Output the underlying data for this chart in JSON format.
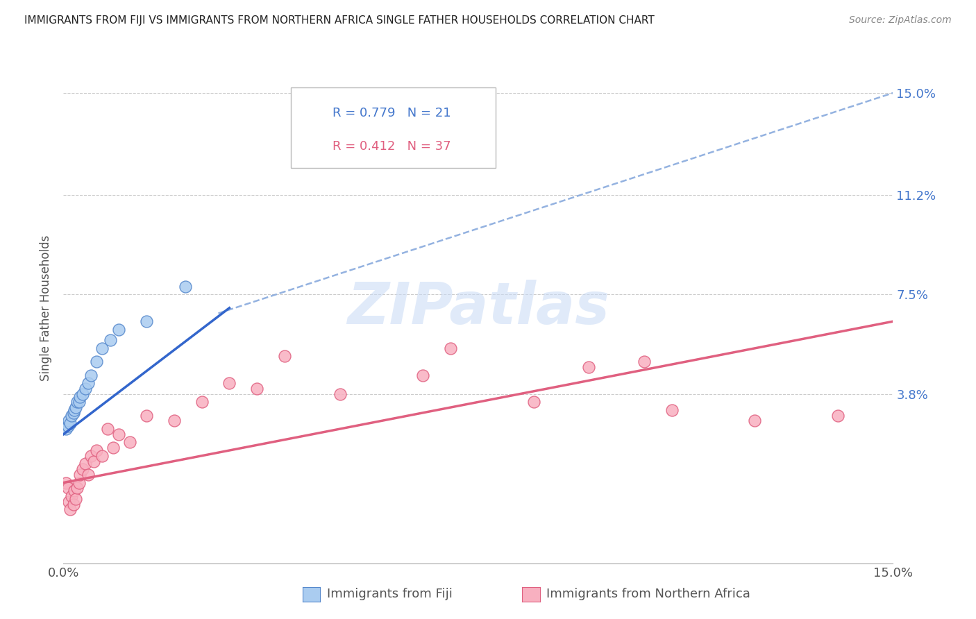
{
  "title": "IMMIGRANTS FROM FIJI VS IMMIGRANTS FROM NORTHERN AFRICA SINGLE FATHER HOUSEHOLDS CORRELATION CHART",
  "source": "Source: ZipAtlas.com",
  "ylabel": "Single Father Households",
  "ytick_labels": [
    "3.8%",
    "7.5%",
    "11.2%",
    "15.0%"
  ],
  "ytick_values": [
    3.8,
    7.5,
    11.2,
    15.0
  ],
  "xlim": [
    0.0,
    15.0
  ],
  "ylim": [
    -2.5,
    16.5
  ],
  "fiji_color": "#aaccf0",
  "fiji_edge_color": "#5588cc",
  "northa_color": "#f8b0c0",
  "northa_edge_color": "#e06080",
  "fiji_line_color": "#3366cc",
  "northa_line_color": "#e06080",
  "dash_color": "#88aadd",
  "fiji_R": 0.779,
  "fiji_N": 21,
  "northa_R": 0.412,
  "northa_N": 37,
  "legend_fiji_label": "Immigrants from Fiji",
  "legend_northa_label": "Immigrants from Northern Africa",
  "watermark": "ZIPatlas",
  "fiji_x": [
    0.05,
    0.08,
    0.1,
    0.12,
    0.15,
    0.18,
    0.2,
    0.22,
    0.25,
    0.28,
    0.3,
    0.35,
    0.4,
    0.45,
    0.5,
    0.6,
    0.7,
    0.85,
    1.0,
    1.5,
    2.2
  ],
  "fiji_y": [
    2.5,
    2.6,
    2.8,
    2.7,
    3.0,
    3.1,
    3.2,
    3.3,
    3.5,
    3.5,
    3.7,
    3.8,
    4.0,
    4.2,
    4.5,
    5.0,
    5.5,
    5.8,
    6.2,
    6.5,
    7.8
  ],
  "northa_x": [
    0.05,
    0.08,
    0.1,
    0.12,
    0.15,
    0.18,
    0.2,
    0.22,
    0.25,
    0.28,
    0.3,
    0.35,
    0.4,
    0.45,
    0.5,
    0.55,
    0.6,
    0.7,
    0.8,
    0.9,
    1.0,
    1.2,
    1.5,
    2.0,
    2.5,
    3.0,
    3.5,
    4.0,
    5.0,
    6.5,
    7.0,
    8.5,
    9.5,
    10.5,
    11.0,
    12.5,
    14.0
  ],
  "northa_y": [
    0.5,
    0.3,
    -0.2,
    -0.5,
    0.0,
    -0.3,
    0.2,
    -0.1,
    0.3,
    0.5,
    0.8,
    1.0,
    1.2,
    0.8,
    1.5,
    1.3,
    1.7,
    1.5,
    2.5,
    1.8,
    2.3,
    2.0,
    3.0,
    2.8,
    3.5,
    4.2,
    4.0,
    5.2,
    3.8,
    4.5,
    5.5,
    3.5,
    4.8,
    5.0,
    3.2,
    2.8,
    3.0
  ],
  "fiji_line_x0": 0.0,
  "fiji_line_y0": 2.3,
  "fiji_line_x1": 3.0,
  "fiji_line_y1": 7.0,
  "fiji_dash_x0": 2.8,
  "fiji_dash_y0": 6.8,
  "fiji_dash_x1": 15.0,
  "fiji_dash_y1": 15.0,
  "northa_line_x0": 0.0,
  "northa_line_y0": 0.5,
  "northa_line_x1": 15.0,
  "northa_line_y1": 6.5
}
